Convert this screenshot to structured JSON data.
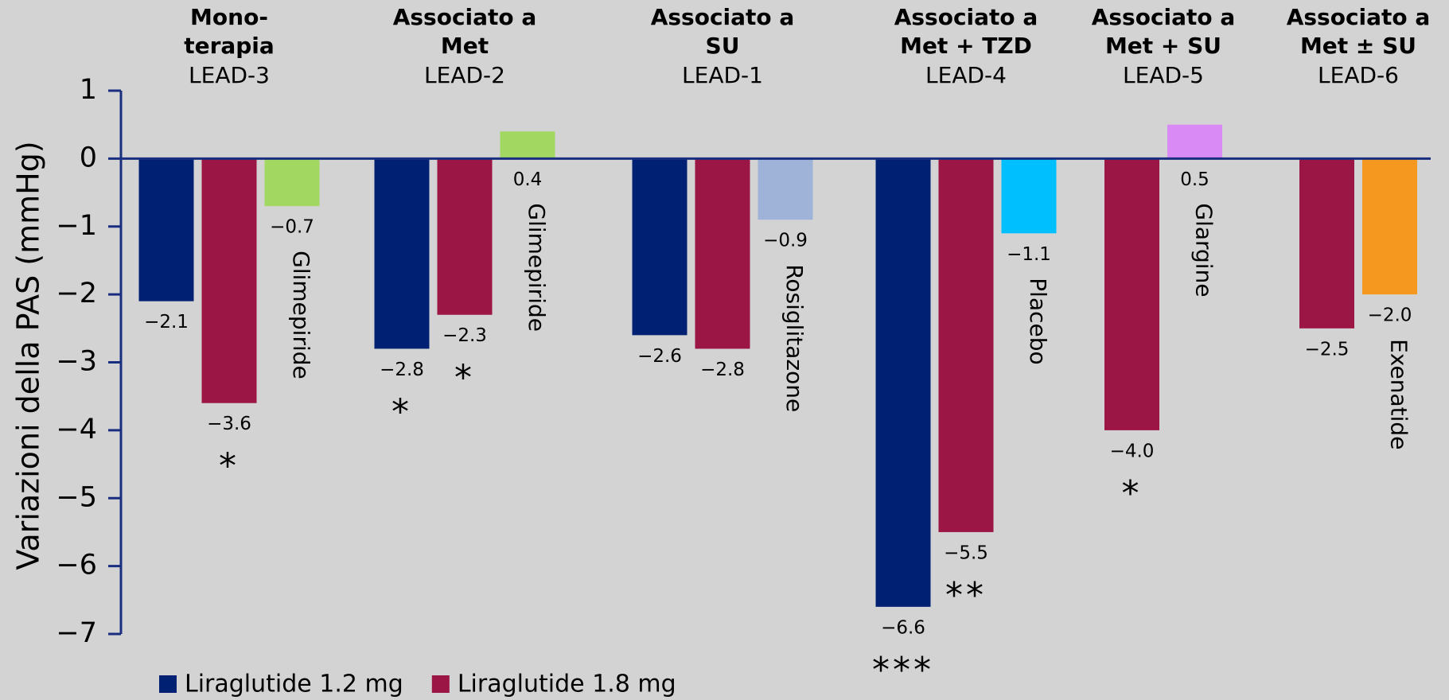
{
  "chart_data": {
    "type": "bar",
    "ylabel": "Variazioni della PAS (mmHg)",
    "ylim": [
      -7,
      1
    ],
    "yticks": [
      {
        "value": 1,
        "label": "1"
      },
      {
        "value": 0,
        "label": "0"
      },
      {
        "value": -1,
        "label": "−1"
      },
      {
        "value": -2,
        "label": "−2"
      },
      {
        "value": -3,
        "label": "−3"
      },
      {
        "value": -4,
        "label": "−4"
      },
      {
        "value": -5,
        "label": "−5"
      },
      {
        "value": -6,
        "label": "−6"
      },
      {
        "value": -7,
        "label": "−7"
      }
    ],
    "groups": [
      {
        "title_lines": [
          "Mono-",
          "terapia"
        ],
        "subtitle": "LEAD-3"
      },
      {
        "title_lines": [
          "Associato a",
          "Met"
        ],
        "subtitle": "LEAD-2"
      },
      {
        "title_lines": [
          "Associato a",
          "SU"
        ],
        "subtitle": "LEAD-1"
      },
      {
        "title_lines": [
          "Associato a",
          "Met + TZD"
        ],
        "subtitle": "LEAD-4"
      },
      {
        "title_lines": [
          "Associato a",
          "Met + SU"
        ],
        "subtitle": "LEAD-5"
      },
      {
        "title_lines": [
          "Associato a",
          "Met ± SU"
        ],
        "subtitle": "LEAD-6"
      }
    ],
    "series": [
      {
        "name": "Liraglutide 1.2 mg",
        "color": "#002173",
        "values": [
          -2.1,
          -2.8,
          -2.6,
          -6.6,
          null,
          null
        ],
        "value_labels": [
          "−2.1",
          "−2.8",
          "−2.6",
          "−6.6",
          null,
          null
        ],
        "annotations": [
          null,
          "*",
          null,
          "***",
          null,
          null
        ]
      },
      {
        "name": "Liraglutide 1.8 mg",
        "color": "#9b1545",
        "values": [
          -3.6,
          -2.3,
          -2.8,
          -5.5,
          -4.0,
          -2.5
        ],
        "value_labels": [
          "−3.6",
          "−2.3",
          "−2.8",
          "−5.5",
          "−4.0",
          "−2.5"
        ],
        "annotations": [
          "*",
          "*",
          null,
          "**",
          "*",
          null
        ]
      },
      {
        "labels": [
          "Glimepiride",
          "Glimepiride",
          "Rosiglitazone",
          "Placebo",
          "Glargine",
          "Exenatide"
        ],
        "colors": [
          "#a2d862",
          "#a2d862",
          "#9fb3d9",
          "#00bfff",
          "#d98af4",
          "#f5981f"
        ],
        "values": [
          -0.7,
          0.4,
          -0.9,
          -1.1,
          0.5,
          -2.0
        ],
        "value_labels": [
          "−0.7",
          "0.4",
          "−0.9",
          "−1.1",
          "0.5",
          "−2.0"
        ]
      }
    ]
  }
}
